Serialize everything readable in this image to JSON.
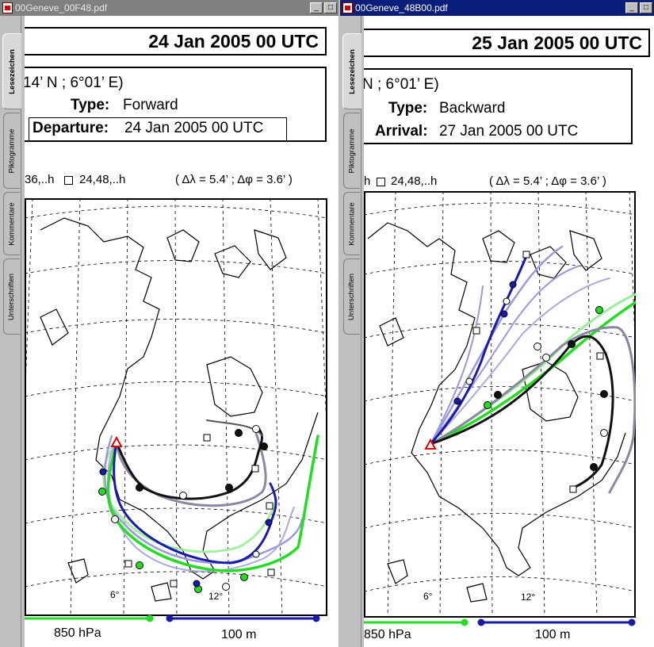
{
  "windows": [
    {
      "id": "left",
      "title": "00Geneve_00F48.pdf",
      "active": false,
      "tabs": [
        "Lesezeichen",
        "Piktogramme",
        "Kommentare",
        "Unterschriften"
      ],
      "date": "24 Jan 2005 00 UTC",
      "coord": "14’ N ;  6°01’ E)",
      "type_label": "Type:",
      "type_value": "Forward",
      "time_label": "Departure:",
      "time_value": "24 Jan 2005 00 UTC",
      "legend_left": "36,..h",
      "legend_right": "24,48,..h",
      "resolution": "( Δλ = 5.4’ ; Δφ = 3.6’ )",
      "lon_labels": [
        "6°",
        "12°"
      ],
      "pressure": "850 hPa",
      "height": "100 m"
    },
    {
      "id": "right",
      "title": "00Geneve_48B00.pdf",
      "active": true,
      "tabs": [
        "Lesezeichen",
        "Piktogramme",
        "Kommentare",
        "Unterschriften"
      ],
      "date": "25 Jan 2005 00 UTC",
      "coord": "N ;  6°01’ E)",
      "type_label": "Type:",
      "type_value": "Backward",
      "time_label": "Arrival:",
      "time_value": "27 Jan 2005 00 UTC",
      "legend_right": "h",
      "legend_right2": "24,48,..h",
      "resolution": "( Δλ = 5.4’ ; Δφ = 3.6’ )",
      "lon_labels": [
        "6°",
        "12°"
      ],
      "pressure": "850 hPa",
      "height": "100 m"
    }
  ],
  "colors": {
    "green": "#22dd22",
    "light_green": "#99ee99",
    "blue": "#1a1aaa",
    "light_blue": "#9999dd",
    "black_traj": "#111111",
    "gray_traj": "#8888a0",
    "start_marker": "#dd0000"
  }
}
